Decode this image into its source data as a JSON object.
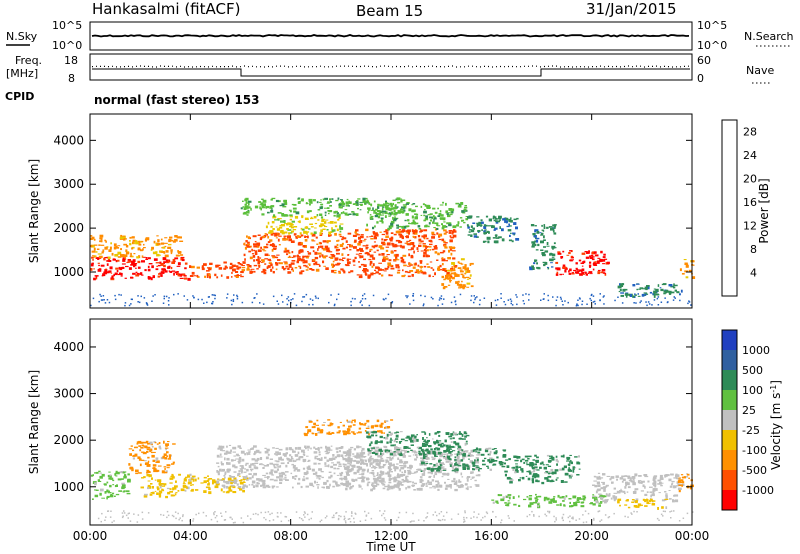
{
  "header": {
    "radar_title": "Hankasalmi (fitACF)",
    "beam_label": "Beam 15",
    "date_label": "31/Jan/2015"
  },
  "top_panels": {
    "nsky_label": "N.Sky",
    "nsky_ticks": [
      "10^5",
      "10^0"
    ],
    "nsearch_label": "N.Search",
    "nsearch_ticks": [
      "10^5",
      "10^0"
    ],
    "freq_label": "Freq.",
    "freq_unit": "[MHz]",
    "freq_ticks": [
      "18",
      "8"
    ],
    "nave_label": "Nave",
    "nave_ticks": [
      "60",
      "0"
    ],
    "cpid_label": "CPID",
    "cpid_text": "normal (fast stereo) 153"
  },
  "chart_data": [
    {
      "type": "heatmap",
      "panel": "power",
      "ylabel": "Slant Range [km]",
      "xlabel": "",
      "x_ticks": [
        "00:00",
        "04:00",
        "08:00",
        "12:00",
        "16:00",
        "20:00",
        "00:00"
      ],
      "x_range_hours": [
        0,
        24
      ],
      "y_ticks": [
        1000,
        2000,
        3000,
        4000
      ],
      "ylim": [
        180,
        4600
      ],
      "colorbar": {
        "label": "Power [dB]",
        "ticks": [
          4,
          8,
          12,
          16,
          20,
          24,
          28
        ],
        "range": [
          0,
          30
        ],
        "colors": [
          "#1a1aff",
          "#2060c0",
          "#2e8b57",
          "#5bbf3a",
          "#e8c800",
          "#ff8c00",
          "#ff4000",
          "#ff0000"
        ]
      },
      "patches": [
        {
          "t0": 0.0,
          "t1": 3.9,
          "r0": 850,
          "r1": 1350,
          "v": 29
        },
        {
          "t0": 0.0,
          "t1": 3.6,
          "r0": 1350,
          "r1": 1850,
          "v": 22
        },
        {
          "t0": 3.9,
          "t1": 6.1,
          "r0": 900,
          "r1": 1250,
          "v": 26
        },
        {
          "t0": 6.1,
          "t1": 10.5,
          "r0": 1000,
          "r1": 1900,
          "v": 25
        },
        {
          "t0": 10.5,
          "t1": 14.5,
          "r0": 900,
          "r1": 2000,
          "v": 24
        },
        {
          "t0": 14.0,
          "t1": 15.2,
          "r0": 650,
          "r1": 1350,
          "v": 21
        },
        {
          "t0": 7.0,
          "t1": 10.0,
          "r0": 1900,
          "r1": 2300,
          "v": 18
        },
        {
          "t0": 6.0,
          "t1": 12.5,
          "r0": 2300,
          "r1": 2700,
          "v": 13
        },
        {
          "t0": 11.0,
          "t1": 15.0,
          "r0": 2000,
          "r1": 2600,
          "v": 13
        },
        {
          "t0": 15.0,
          "t1": 17.0,
          "r0": 1700,
          "r1": 2300,
          "v": 11
        },
        {
          "t0": 18.5,
          "t1": 20.7,
          "r0": 950,
          "r1": 1500,
          "v": 29
        },
        {
          "t0": 17.5,
          "t1": 18.5,
          "r0": 1100,
          "r1": 2100,
          "v": 11
        },
        {
          "t0": 21.0,
          "t1": 23.6,
          "r0": 450,
          "r1": 750,
          "v": 10
        },
        {
          "t0": 23.5,
          "t1": 24.0,
          "r0": 900,
          "r1": 1300,
          "v": 22
        }
      ]
    },
    {
      "type": "heatmap",
      "panel": "velocity",
      "ylabel": "Slant Range [km]",
      "xlabel": "Time UT",
      "x_ticks": [
        "00:00",
        "04:00",
        "08:00",
        "12:00",
        "16:00",
        "20:00",
        "00:00"
      ],
      "x_range_hours": [
        0,
        24
      ],
      "y_ticks": [
        1000,
        2000,
        3000,
        4000
      ],
      "ylim": [
        180,
        4600
      ],
      "colorbar": {
        "label": "Velocity [m s",
        "label_sup": "-1",
        "label_end": "]",
        "ticks": [
          "1000",
          "500",
          "100",
          "25",
          "-25",
          "-100",
          "-500",
          "-1000"
        ],
        "colors": [
          "#2040c0",
          "#3060a0",
          "#2e8b57",
          "#60c040",
          "#c0c0c0",
          "#f0c000",
          "#ff9000",
          "#ff5000",
          "#ff0000"
        ]
      },
      "patches": [
        {
          "t0": 0.0,
          "t1": 1.5,
          "r0": 750,
          "r1": 1350,
          "v": "#60c040"
        },
        {
          "t0": 1.5,
          "t1": 3.3,
          "r0": 1300,
          "r1": 2000,
          "v": "#ff9000"
        },
        {
          "t0": 2.0,
          "t1": 4.0,
          "r0": 800,
          "r1": 1300,
          "v": "#f0c000"
        },
        {
          "t0": 3.7,
          "t1": 6.2,
          "r0": 900,
          "r1": 1250,
          "v": "#f0c000"
        },
        {
          "t0": 5.0,
          "t1": 12.5,
          "r0": 1000,
          "r1": 1900,
          "v": "#c0c0c0"
        },
        {
          "t0": 10.0,
          "t1": 15.5,
          "r0": 950,
          "r1": 1800,
          "v": "#c0c0c0"
        },
        {
          "t0": 8.5,
          "t1": 12.0,
          "r0": 2150,
          "r1": 2450,
          "v": "#ff9000"
        },
        {
          "t0": 11.0,
          "t1": 15.0,
          "r0": 1700,
          "r1": 2200,
          "v": "#2e8b57"
        },
        {
          "t0": 13.0,
          "t1": 16.5,
          "r0": 1350,
          "r1": 1850,
          "v": "#2e8b57"
        },
        {
          "t0": 16.5,
          "t1": 19.5,
          "r0": 1100,
          "r1": 1700,
          "v": "#2e8b57"
        },
        {
          "t0": 16.0,
          "t1": 20.5,
          "r0": 600,
          "r1": 850,
          "v": "#60c040"
        },
        {
          "t0": 20.0,
          "t1": 23.5,
          "r0": 700,
          "r1": 1300,
          "v": "#c0c0c0"
        },
        {
          "t0": 23.4,
          "t1": 24.0,
          "r0": 900,
          "r1": 1300,
          "v": "#ff9000"
        },
        {
          "t0": 21.0,
          "t1": 23.0,
          "r0": 550,
          "r1": 750,
          "v": "#f0c000"
        }
      ]
    }
  ]
}
